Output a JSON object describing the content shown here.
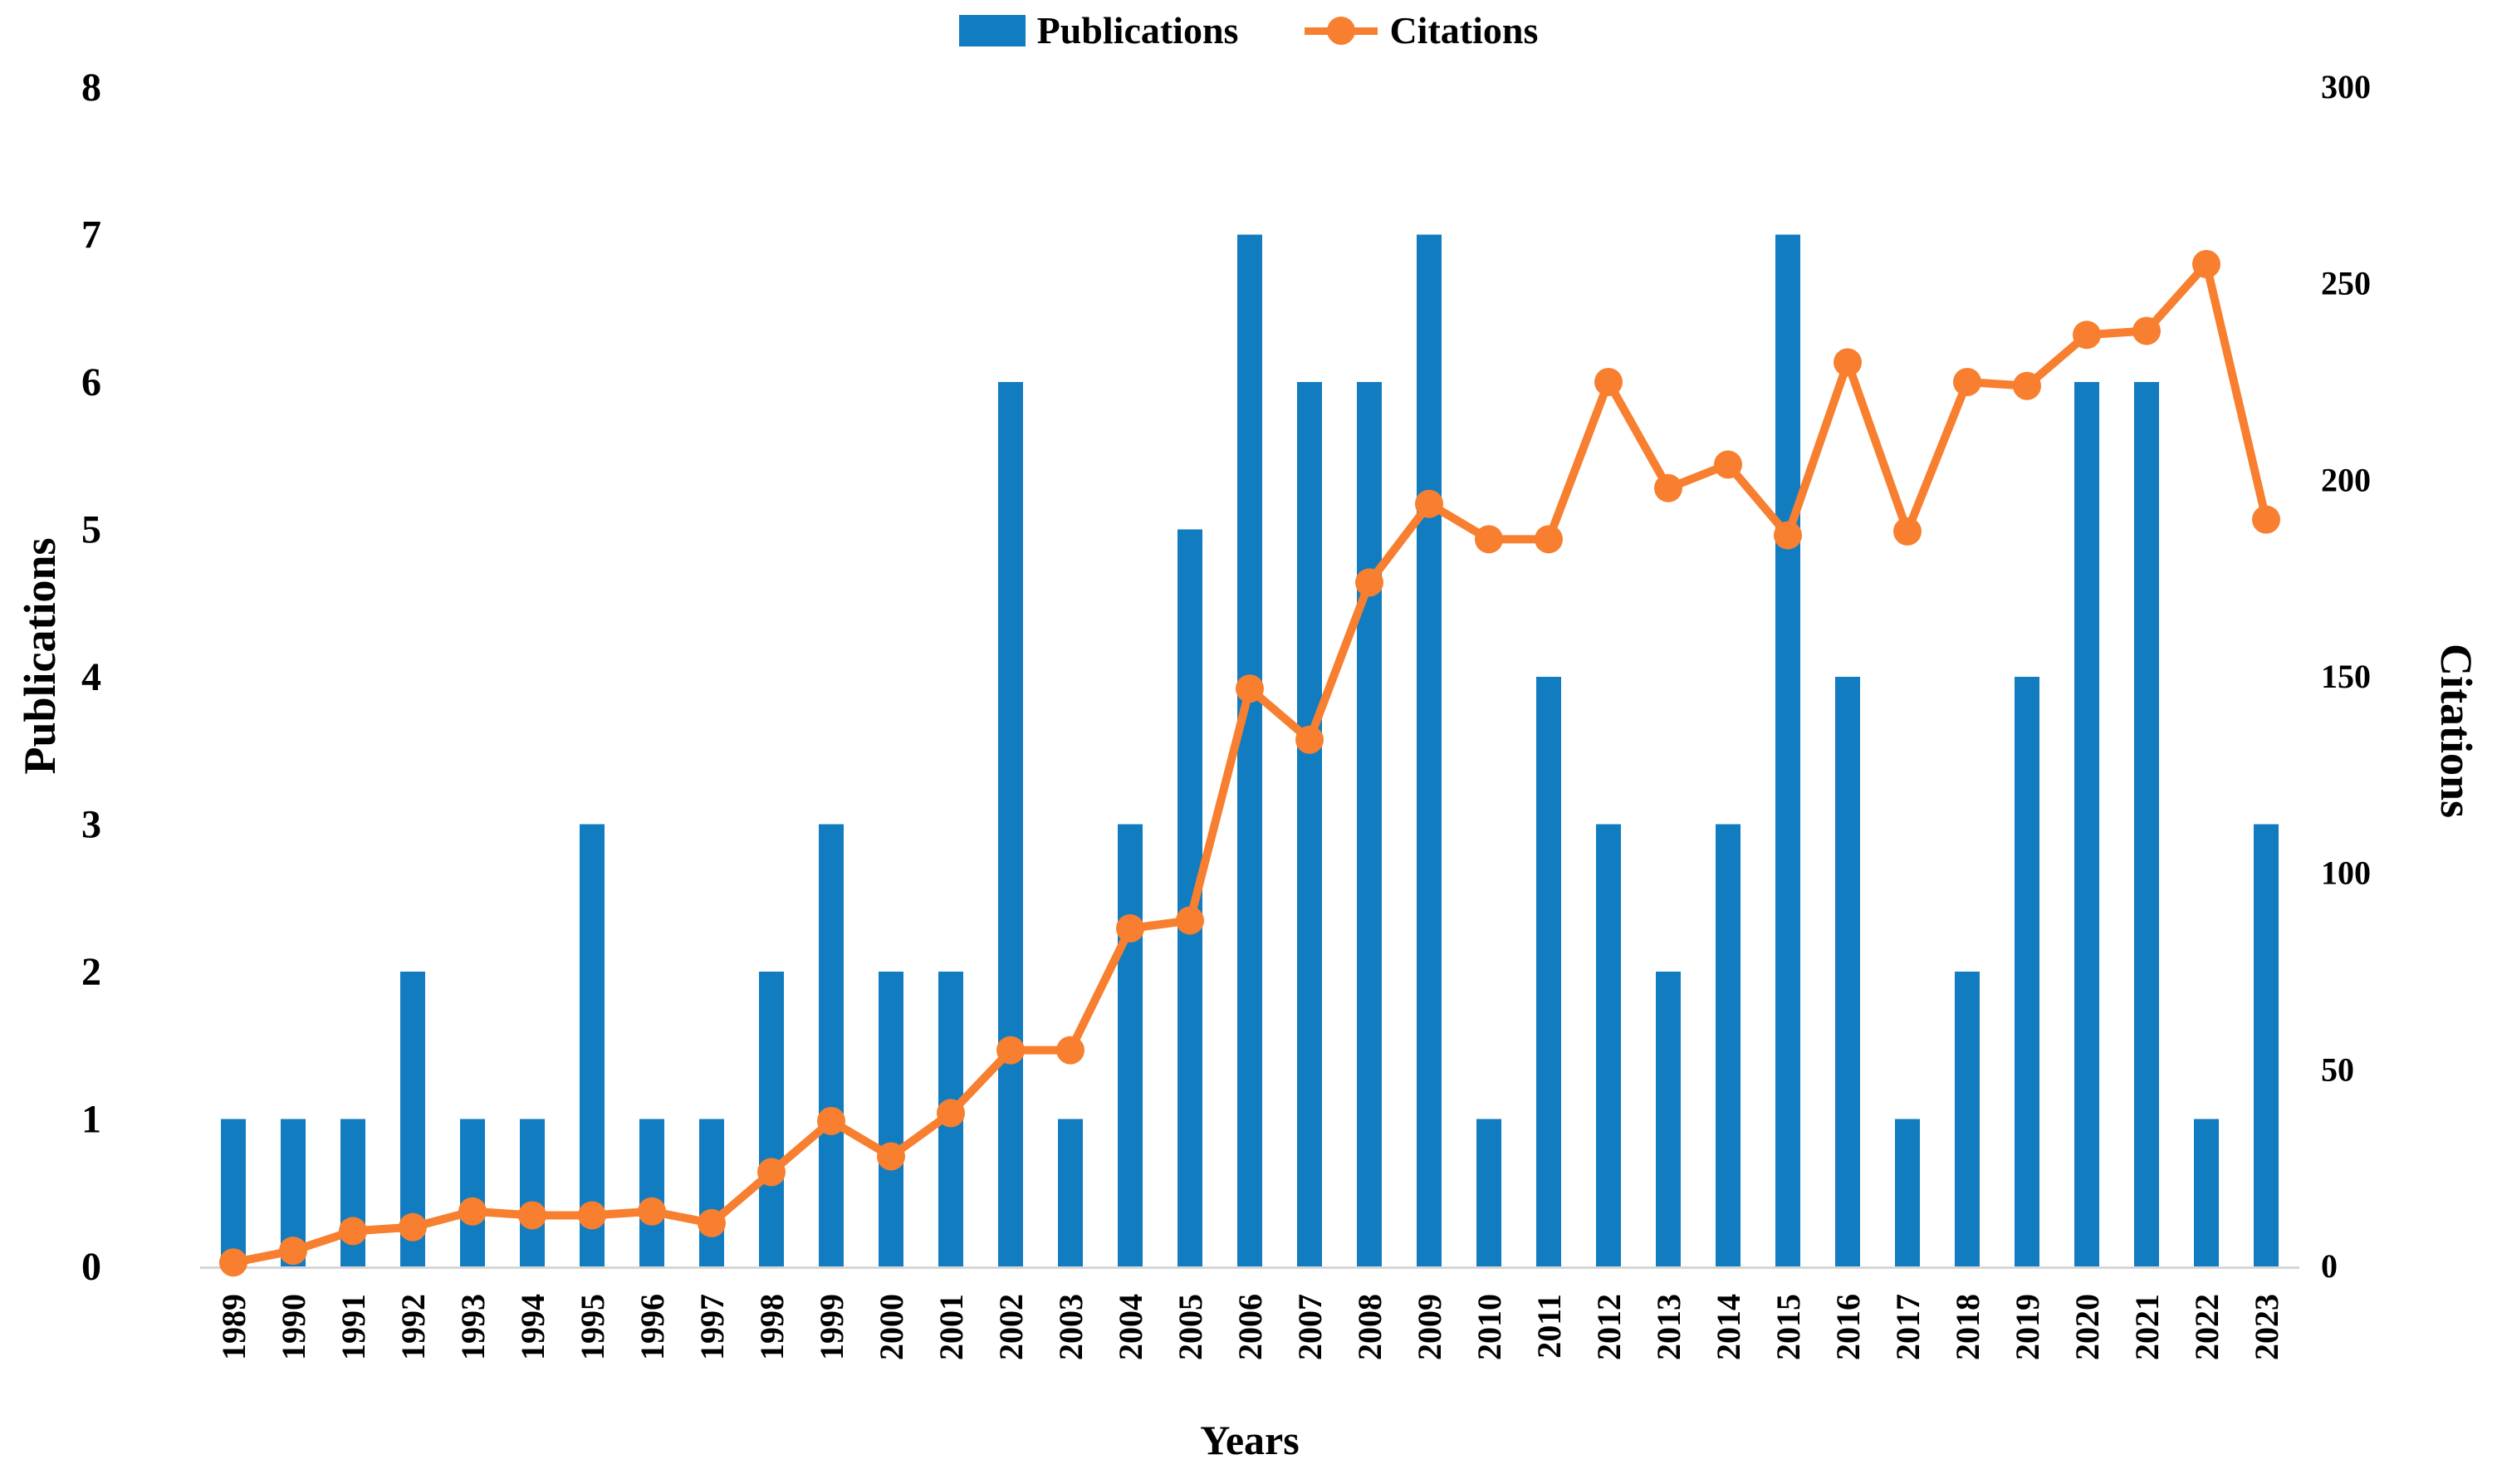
{
  "chart_data": {
    "type": "combo",
    "title": "",
    "categories": [
      "1989",
      "1990",
      "1991",
      "1992",
      "1993",
      "1994",
      "1995",
      "1996",
      "1997",
      "1998",
      "1999",
      "2000",
      "2001",
      "2002",
      "2003",
      "2004",
      "2005",
      "2006",
      "2007",
      "2008",
      "2009",
      "2010",
      "2011",
      "2012",
      "2013",
      "2014",
      "2015",
      "2016",
      "2017",
      "2018",
      "2019",
      "2020",
      "2021",
      "2022",
      "2023"
    ],
    "series": [
      {
        "name": "Publications",
        "type": "bar",
        "axis": "left",
        "values": [
          1,
          1,
          1,
          2,
          1,
          1,
          3,
          1,
          1,
          2,
          3,
          2,
          2,
          6,
          1,
          3,
          5,
          7,
          6,
          6,
          7,
          1,
          4,
          3,
          2,
          3,
          7,
          4,
          1,
          2,
          4,
          6,
          6,
          1,
          3
        ]
      },
      {
        "name": "Citations",
        "type": "line",
        "axis": "right",
        "values": [
          1,
          4,
          9,
          10,
          14,
          13,
          13,
          14,
          11,
          24,
          37,
          28,
          39,
          55,
          55,
          86,
          88,
          147,
          134,
          174,
          194,
          185,
          185,
          225,
          198,
          204,
          186,
          230,
          187,
          225,
          224,
          237,
          238,
          255,
          190
        ]
      }
    ],
    "xlabel": "Years",
    "ylabel_left": "Publications",
    "ylabel_right": "Citations",
    "ylim_left": [
      0,
      8
    ],
    "ylim_right": [
      0,
      300
    ],
    "yticks_left": [
      0,
      1,
      2,
      3,
      4,
      5,
      6,
      7,
      8
    ],
    "yticks_right": [
      0,
      50,
      100,
      150,
      200,
      250,
      300
    ],
    "grid": false,
    "legend_position": "top-center"
  },
  "legend": {
    "publications_label": "Publications",
    "citations_label": "Citations"
  },
  "axes": {
    "x_title": "Years",
    "left_title": "Publications",
    "right_title": "Citations"
  },
  "colors": {
    "bar": "#127CC0",
    "line": "#F77F2F",
    "axis_line": "#D6D6D6",
    "text": "#000000",
    "background": "#FFFFFF"
  }
}
